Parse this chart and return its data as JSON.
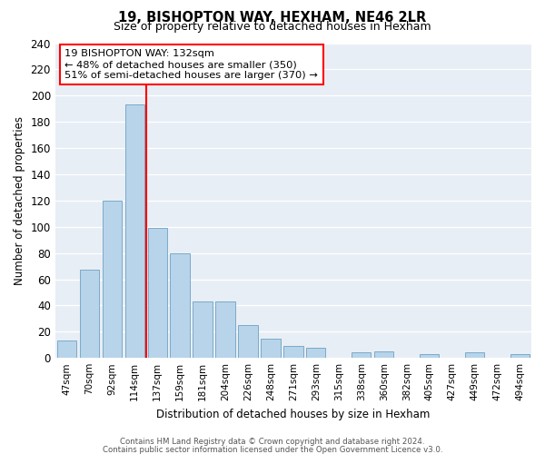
{
  "title": "19, BISHOPTON WAY, HEXHAM, NE46 2LR",
  "subtitle": "Size of property relative to detached houses in Hexham",
  "xlabel": "Distribution of detached houses by size in Hexham",
  "ylabel": "Number of detached properties",
  "categories": [
    "47sqm",
    "70sqm",
    "92sqm",
    "114sqm",
    "137sqm",
    "159sqm",
    "181sqm",
    "204sqm",
    "226sqm",
    "248sqm",
    "271sqm",
    "293sqm",
    "315sqm",
    "338sqm",
    "360sqm",
    "382sqm",
    "405sqm",
    "427sqm",
    "449sqm",
    "472sqm",
    "494sqm"
  ],
  "values": [
    13,
    67,
    120,
    193,
    99,
    80,
    43,
    43,
    25,
    15,
    9,
    8,
    0,
    4,
    5,
    0,
    3,
    0,
    4,
    0,
    3
  ],
  "bar_color": "#b8d4ea",
  "bar_edge_color": "#7aaac8",
  "ylim": [
    0,
    240
  ],
  "yticks": [
    0,
    20,
    40,
    60,
    80,
    100,
    120,
    140,
    160,
    180,
    200,
    220,
    240
  ],
  "red_line_x": 3.5,
  "annotation_title": "19 BISHOPTON WAY: 132sqm",
  "annotation_line1": "← 48% of detached houses are smaller (350)",
  "annotation_line2": "51% of semi-detached houses are larger (370) →",
  "footer_line1": "Contains HM Land Registry data © Crown copyright and database right 2024.",
  "footer_line2": "Contains public sector information licensed under the Open Government Licence v3.0.",
  "plot_bg_color": "#e8eef5",
  "fig_bg_color": "#ffffff",
  "grid_color": "#ffffff"
}
